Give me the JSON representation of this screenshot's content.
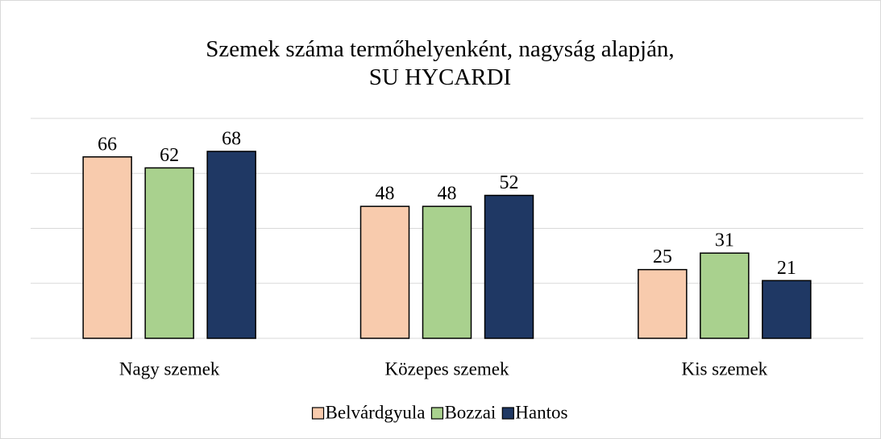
{
  "chart_data": {
    "type": "bar",
    "title": "Szemek száma termőhelyenként, nagyság alapján, SU HYCARDI",
    "categories": [
      "Nagy szemek",
      "Közepes szemek",
      "Kis szemek"
    ],
    "series": [
      {
        "name": "Belvárdgyula",
        "color": "#f8cbad",
        "values": [
          66,
          48,
          25
        ]
      },
      {
        "name": "Bozzai",
        "color": "#a9d18e",
        "values": [
          62,
          48,
          31
        ]
      },
      {
        "name": "Hantos",
        "color": "#1f3864",
        "values": [
          68,
          52,
          21
        ]
      }
    ],
    "ylim": [
      0,
      80
    ],
    "yticks": [
      0,
      20,
      40,
      60,
      80
    ],
    "grid": true,
    "legend": "bottom"
  }
}
